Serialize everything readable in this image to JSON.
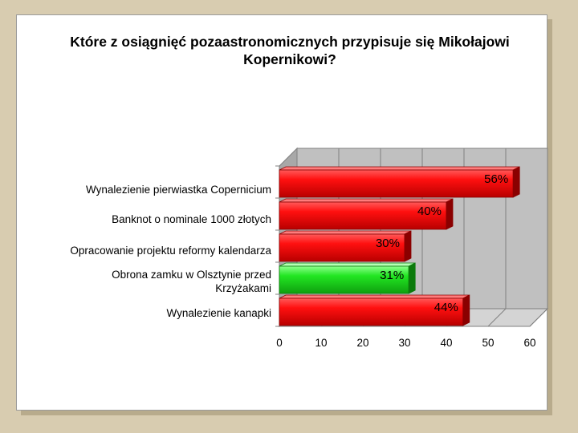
{
  "chart_data": {
    "type": "bar",
    "orientation": "horizontal",
    "title": "Które z osiągnięć pozaastronomicznych przypisuje się Mikołajowi Kopernikowi?",
    "categories": [
      "Wynalezienie pierwiastka Copernicium",
      "Banknot o nominale 1000 złotych",
      "Opracowanie projektu reformy kalendarza",
      "Obrona zamku w Olsztynie przed Krzyżakami",
      "Wynalezienie kanapki"
    ],
    "values": [
      56,
      40,
      30,
      31,
      44
    ],
    "data_labels": [
      "56%",
      "40%",
      "30%",
      "31%",
      "44%"
    ],
    "highlight_index": 3,
    "colors": {
      "default": "#e00000",
      "highlight": "#22dd22"
    },
    "xlim": [
      0,
      60
    ],
    "xticks": [
      0,
      10,
      20,
      30,
      40,
      50,
      60
    ],
    "grid": true,
    "legend": "none"
  }
}
